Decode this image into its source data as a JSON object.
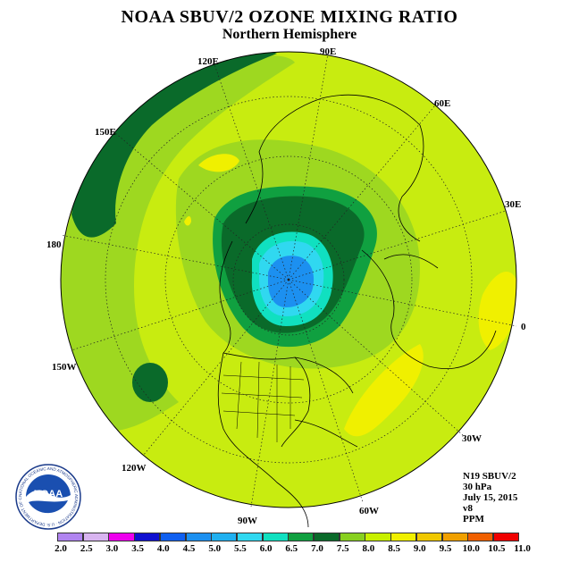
{
  "title": "NOAA SBUV/2 OZONE MIXING RATIO",
  "subtitle": "Northern Hemisphere",
  "longitude_labels": [
    {
      "id": "lon-90e",
      "text": "90E"
    },
    {
      "id": "lon-60e",
      "text": "60E"
    },
    {
      "id": "lon-30e",
      "text": "30E"
    },
    {
      "id": "lon-0",
      "text": "0"
    },
    {
      "id": "lon-30w",
      "text": "30W"
    },
    {
      "id": "lon-60w",
      "text": "60W"
    },
    {
      "id": "lon-90w",
      "text": "90W"
    },
    {
      "id": "lon-120w",
      "text": "120W"
    },
    {
      "id": "lon-150w",
      "text": "150W"
    },
    {
      "id": "lon-180",
      "text": "180"
    },
    {
      "id": "lon-150e",
      "text": "150E"
    },
    {
      "id": "lon-120e",
      "text": "120E"
    }
  ],
  "info": {
    "instrument": "N19 SBUV/2",
    "level": "30 hPa",
    "date": "July 15, 2015",
    "version": "v8",
    "units": "PPM"
  },
  "logo": {
    "text": "NOAA",
    "ring_text": "NATIONAL OCEANIC AND ATMOSPHERIC ADMINISTRATION · U.S. DEPARTMENT OF COMMERCE"
  },
  "colorbar": {
    "ticks": [
      "2.0",
      "2.5",
      "3.0",
      "3.5",
      "4.0",
      "4.5",
      "5.0",
      "5.5",
      "6.0",
      "6.5",
      "7.0",
      "7.5",
      "8.0",
      "8.5",
      "9.0",
      "9.5",
      "10.0",
      "10.5",
      "11.0"
    ],
    "colors": [
      "#b084f0",
      "#d8b4f0",
      "#ee00ee",
      "#1010d0",
      "#1060f0",
      "#1c90f0",
      "#20b0f0",
      "#30d8f0",
      "#10e0c0",
      "#10a040",
      "#0a6a2a",
      "#88d020",
      "#c8f000",
      "#f0f000",
      "#f0c800",
      "#f0a000",
      "#f06000",
      "#f00000",
      "#8a5030"
    ]
  }
}
